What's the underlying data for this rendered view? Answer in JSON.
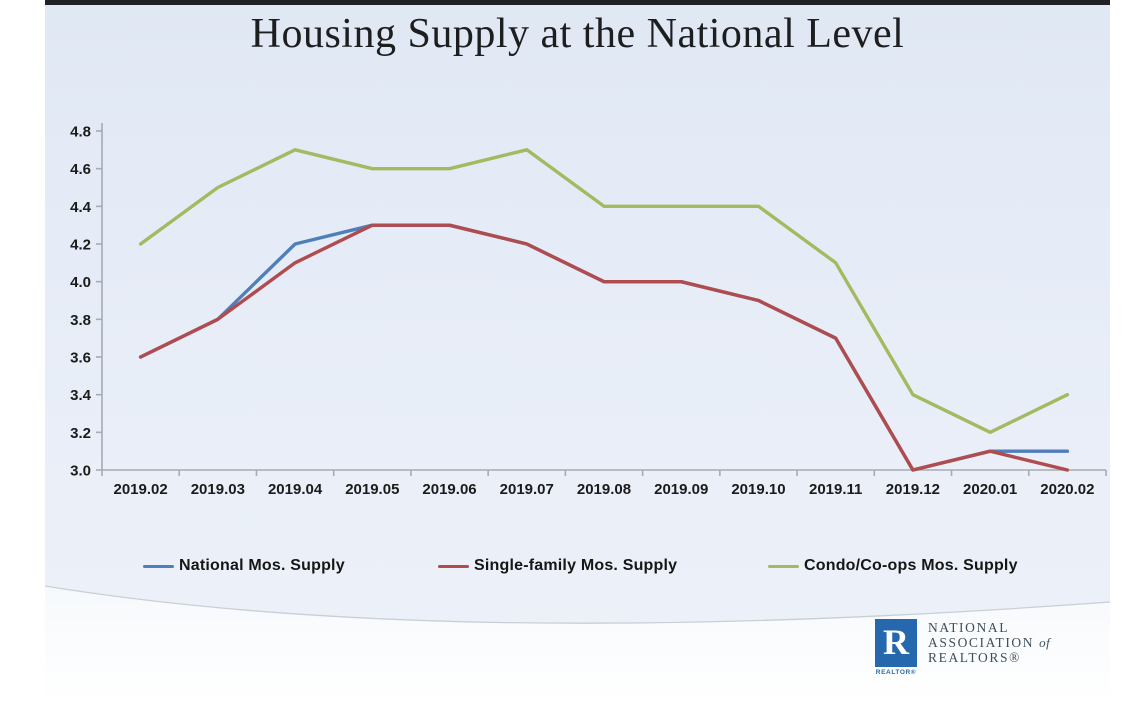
{
  "slide": {
    "title": "Housing Supply at the National Level"
  },
  "chart_data": {
    "type": "line",
    "title": "Housing Supply at the National Level",
    "categories": [
      "2019.02",
      "2019.03",
      "2019.04",
      "2019.05",
      "2019.06",
      "2019.07",
      "2019.08",
      "2019.09",
      "2019.10",
      "2019.11",
      "2019.12",
      "2020.01",
      "2020.02"
    ],
    "series": [
      {
        "name": "National Mos. Supply",
        "color": "#4E7FBA",
        "values": [
          3.6,
          3.8,
          4.2,
          4.3,
          4.3,
          4.2,
          4.0,
          4.0,
          3.9,
          3.7,
          3.0,
          3.1,
          3.1
        ]
      },
      {
        "name": "Single-family Mos. Supply",
        "color": "#B04B4E",
        "values": [
          3.6,
          3.8,
          4.1,
          4.3,
          4.3,
          4.2,
          4.0,
          4.0,
          3.9,
          3.7,
          3.0,
          3.1,
          3.0
        ]
      },
      {
        "name": "Condo/Co-ops Mos. Supply",
        "color": "#A3BA60",
        "values": [
          4.2,
          4.5,
          4.7,
          4.6,
          4.6,
          4.7,
          4.4,
          4.4,
          4.4,
          4.1,
          3.4,
          3.2,
          3.4
        ]
      }
    ],
    "xlabel": "",
    "ylabel": "",
    "ylim": [
      3.0,
      4.8
    ],
    "y_ticks": [
      "4.8",
      "4.6",
      "4.4",
      "4.2",
      "4.0",
      "3.8",
      "3.6",
      "3.4",
      "3.2",
      "3.0"
    ],
    "grid": false,
    "legend_position": "bottom",
    "axis_color": "#a6abb4",
    "label_color": "#1b1b1b"
  },
  "logo": {
    "mark": "R",
    "mark_caption": "REALTOR®",
    "line1": "NATIONAL",
    "line2a": "ASSOCIATION",
    "line2b": "of",
    "line3": "REALTORS®"
  }
}
